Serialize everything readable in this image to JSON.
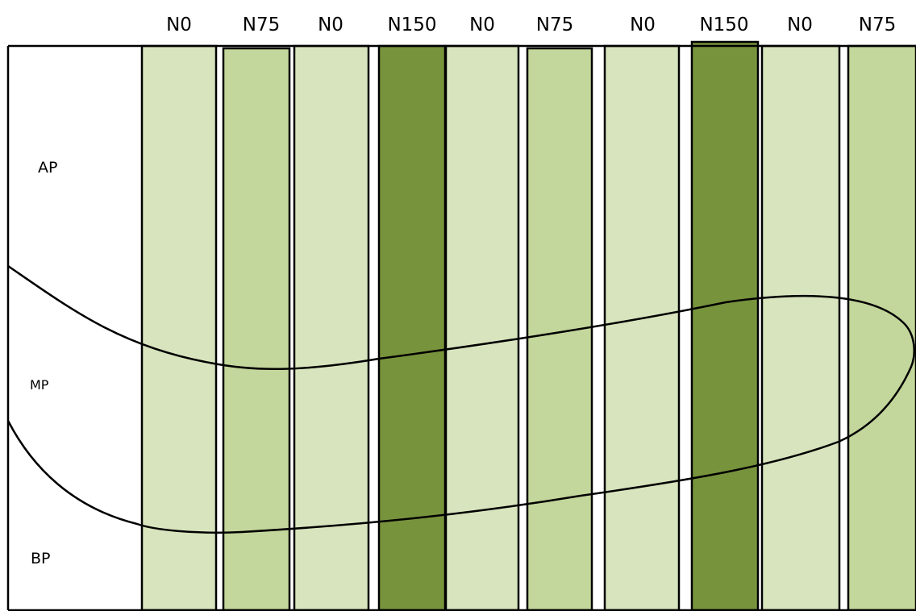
{
  "columns": [
    {
      "label": "N0",
      "treatment": "N0"
    },
    {
      "label": "N75",
      "treatment": "N75"
    },
    {
      "label": "N0",
      "treatment": "N0"
    },
    {
      "label": "N150",
      "treatment": "N150"
    },
    {
      "label": "N0",
      "treatment": "N0"
    },
    {
      "label": "N75",
      "treatment": "N75"
    },
    {
      "label": "N0",
      "treatment": "N0"
    },
    {
      "label": "N150",
      "treatment": "N150"
    },
    {
      "label": "N0",
      "treatment": "N0"
    },
    {
      "label": "N75",
      "treatment": "N75"
    }
  ],
  "zones": {
    "upper": "AP",
    "middle": "MP",
    "lower": "BP"
  },
  "colors": {
    "N0": "#d7e4bd",
    "N75": "#c3d69b",
    "N150": "#77933c",
    "outline": "#000000",
    "background": "#ffffff"
  }
}
